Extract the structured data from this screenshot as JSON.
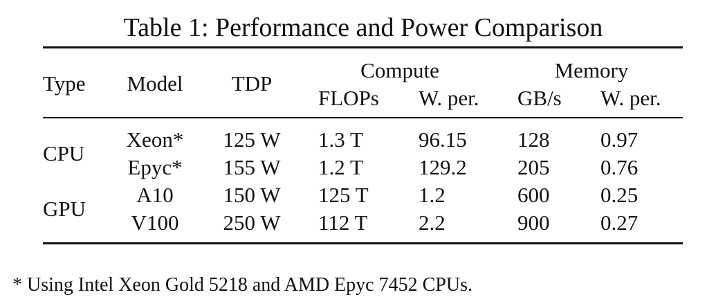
{
  "table": {
    "caption": "Table 1: Performance and Power Comparison",
    "headers": {
      "type": "Type",
      "model": "Model",
      "tdp": "TDP",
      "compute_group": "Compute",
      "memory_group": "Memory",
      "compute_flops": "FLOPs",
      "compute_wper": "W. per.",
      "memory_gbs": "GB/s",
      "memory_wper": "W. per."
    },
    "groups": [
      {
        "type": "CPU"
      },
      {
        "type": "GPU"
      }
    ],
    "rows": [
      {
        "model": "Xeon*",
        "tdp": "125 W",
        "flops": "1.3 T",
        "compute_wper": "96.15",
        "gbs": "128",
        "memory_wper": "0.97"
      },
      {
        "model": "Epyc*",
        "tdp": "155 W",
        "flops": "1.2 T",
        "compute_wper": "129.2",
        "gbs": "205",
        "memory_wper": "0.76"
      },
      {
        "model": "A10",
        "tdp": "150 W",
        "flops": "125 T",
        "compute_wper": "1.2",
        "gbs": "600",
        "memory_wper": "0.25"
      },
      {
        "model": "V100",
        "tdp": "250 W",
        "flops": "112 T",
        "compute_wper": "2.2",
        "gbs": "900",
        "memory_wper": "0.27"
      }
    ],
    "footnote": "* Using Intel Xeon Gold 5218 and AMD Epyc 7452 CPUs."
  }
}
